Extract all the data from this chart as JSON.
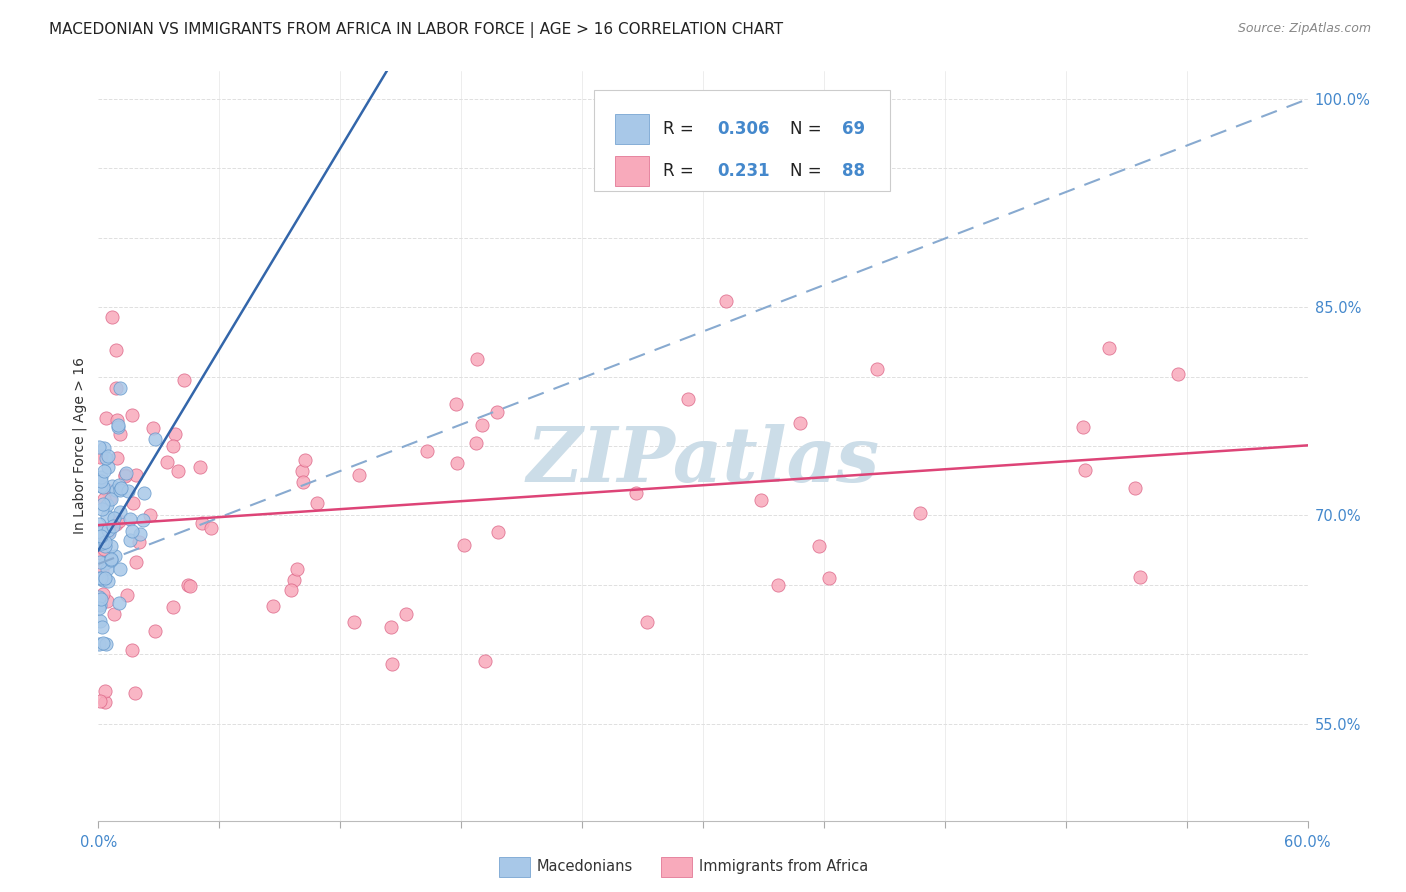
{
  "title": "MACEDONIAN VS IMMIGRANTS FROM AFRICA IN LABOR FORCE | AGE > 16 CORRELATION CHART",
  "source": "Source: ZipAtlas.com",
  "ylabel": "In Labor Force | Age > 16",
  "xlim": [
    0.0,
    0.6
  ],
  "ylim": [
    0.48,
    1.02
  ],
  "macedonian_color": "#a8c8e8",
  "macedonian_edge": "#6699cc",
  "africa_color": "#f8aabb",
  "africa_edge": "#dd6688",
  "macedonian_R": 0.306,
  "macedonian_N": 69,
  "africa_R": 0.231,
  "africa_N": 88,
  "background_color": "#ffffff",
  "grid_color": "#e0e0e0",
  "watermark": "ZIPatlas",
  "watermark_color": "#ccdde8",
  "mac_trendline_color": "#3366aa",
  "afr_trendline_color": "#dd4477",
  "mac_dashed_color": "#88aad0"
}
